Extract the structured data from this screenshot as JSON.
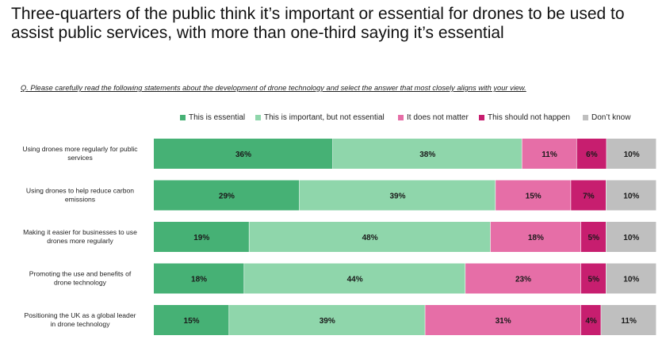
{
  "title": "Three-quarters of the public think it’s important or essential for drones to be used to assist public services, with more than one-third saying it’s essential",
  "question": "Q. Please carefully read the following statements about the development of drone technology and select the answer that most closely aligns with your view.",
  "colors": {
    "essential": "#46b175",
    "important": "#8fd6ab",
    "not_matter": "#e66ea7",
    "should_not": "#c71e6f",
    "dont_know": "#bfbfbf"
  },
  "chart_data": {
    "type": "bar",
    "orientation": "horizontal",
    "stacked": true,
    "legend_position": "top",
    "categories": [
      [
        "Using drones more regularly for public",
        "services"
      ],
      [
        "Using drones to help reduce carbon",
        "emissions"
      ],
      [
        "Making it easier for businesses to use",
        "drones more regularly"
      ],
      [
        "Promoting the use and benefits of",
        "drone technology"
      ],
      [
        "Positioning the UK as a global leader",
        "in drone technology"
      ]
    ],
    "series": [
      {
        "name": "This is essential",
        "key": "essential",
        "values": [
          36,
          29,
          19,
          18,
          15
        ],
        "labels": [
          "36%",
          "29%",
          "19%",
          "18%",
          "15%"
        ]
      },
      {
        "name": "This is important, but not essential",
        "key": "important",
        "values": [
          38,
          39,
          48,
          44,
          39
        ],
        "labels": [
          "38%",
          "39%",
          "48%",
          "44%",
          "39%"
        ]
      },
      {
        "name": "It does not matter",
        "key": "not_matter",
        "values": [
          11,
          15,
          18,
          23,
          31
        ],
        "labels": [
          "11%",
          "15%",
          "18%",
          "23%",
          "31%"
        ]
      },
      {
        "name": "This should not happen",
        "key": "should_not",
        "values": [
          6,
          7,
          5,
          5,
          4
        ],
        "labels": [
          "6%",
          "7%",
          "5%",
          "5%",
          "4%"
        ]
      },
      {
        "name": "Don’t know",
        "key": "dont_know",
        "values": [
          10,
          10,
          10,
          10,
          11
        ],
        "labels": [
          "10%",
          "10%",
          "10%",
          "10%",
          "11%"
        ]
      }
    ]
  }
}
